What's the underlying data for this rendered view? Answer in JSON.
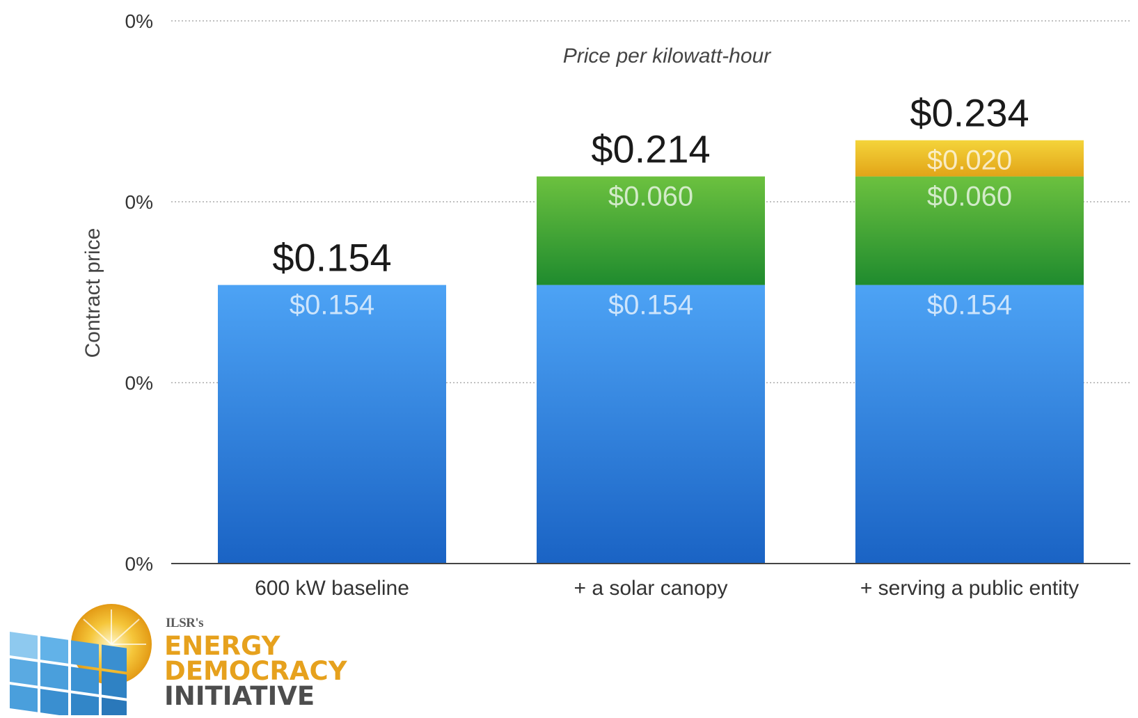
{
  "chart_data": {
    "type": "bar",
    "stacked": true,
    "title": "",
    "subtitle": "Price per kilowatt-hour",
    "xlabel": "",
    "ylabel": "Contract price",
    "y_tick_labels": [
      "0%",
      "0%",
      "0%",
      "0%"
    ],
    "ylim": [
      0,
      0.3
    ],
    "grid": true,
    "categories": [
      "600 kW baseline",
      "+ a solar canopy",
      "+ serving a public entity"
    ],
    "series": [
      {
        "values": [
          0.154,
          0.154,
          0.154
        ],
        "value_labels": [
          "$0.154",
          "$0.154",
          "$0.154"
        ],
        "color_top": "#4da3f5",
        "color_bottom": "#1a63c4"
      },
      {
        "values": [
          0,
          0.06,
          0.06
        ],
        "value_labels": [
          "",
          "$0.060",
          "$0.060"
        ],
        "color_top": "#6cc13f",
        "color_bottom": "#1f8b2e"
      },
      {
        "values": [
          0,
          0,
          0.02
        ],
        "value_labels": [
          "",
          "",
          "$0.020"
        ],
        "color_top": "#f4d43a",
        "color_bottom": "#e2a418"
      }
    ],
    "totals": [
      "$0.154",
      "$0.214",
      "$0.234"
    ]
  },
  "logo": {
    "small_text": "ILSR's",
    "line1": "ENERGY",
    "line2": "DEMOCRACY",
    "line3": "INITIATIVE",
    "colors": {
      "gold": "#e6a11d",
      "gray": "#4d4d4d",
      "panel_blue": "#4a9fdc"
    }
  }
}
